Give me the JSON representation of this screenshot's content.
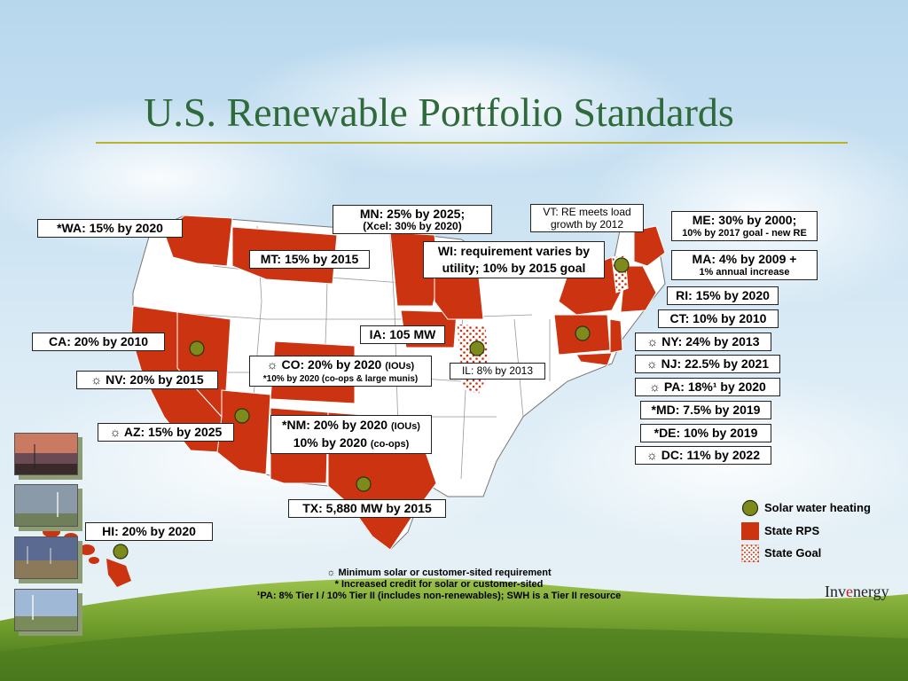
{
  "title": "U.S. Renewable Portfolio Standards",
  "colors": {
    "rps": "#cc3311",
    "goal_dots": "#cc3311",
    "solar": "#7d8a1c",
    "title": "#2f6a3a",
    "rule": "#b7b32d"
  },
  "callouts": {
    "wa": "*WA: 15% by 2020",
    "mt": "MT: 15% by 2015",
    "mn_line1": "MN: 25% by 2025;",
    "mn_line2": "(Xcel: 30% by 2020)",
    "vt_line1": "VT: RE meets load",
    "vt_line2": "growth by 2012",
    "wi_line1": "WI: requirement varies by",
    "wi_line2": "utility; 10% by 2015 goal",
    "me_line1": "ME: 30% by 2000;",
    "me_line2": "10% by 2017 goal - new RE",
    "ma_line1": "MA: 4% by 2009 +",
    "ma_line2": "1% annual increase",
    "ri": "RI: 15% by 2020",
    "ct": "CT: 10% by 2010",
    "ny": "☼ NY: 24% by 2013",
    "nj": "☼ NJ: 22.5% by 2021",
    "pa": "☼ PA: 18%¹ by 2020",
    "md": "*MD: 7.5% by 2019",
    "de": "*DE: 10% by 2019",
    "dc": "☼ DC: 11% by 2022",
    "ca": "CA: 20% by 2010",
    "ia": "IA: 105 MW",
    "co_line1": "☼ CO: 20% by 2020",
    "co_small": "(IOUs)",
    "co_line2": "*10% by 2020 (co-ops & large munis)",
    "il": "IL: 8% by 2013",
    "nv": "☼ NV: 20% by 2015",
    "nm_line1": "*NM: 20% by 2020",
    "nm_small1": "(IOUs)",
    "nm_line2": "10% by 2020",
    "nm_small2": "(co-ops)",
    "az": "☼ AZ: 15% by 2025",
    "tx": "TX: 5,880 MW by 2015",
    "hi": "HI: 20% by 2020"
  },
  "legend": {
    "solar": "Solar water heating",
    "rps": "State RPS",
    "goal": "State Goal"
  },
  "footnotes": {
    "line1": "☼ Minimum solar or customer-sited requirement",
    "line2": "* Increased credit for solar or customer-sited",
    "line3": "¹PA: 8% Tier I / 10% Tier II (includes non-renewables); SWH is a Tier II resource"
  },
  "logo": {
    "part1": "Inv",
    "part2": "e",
    "part3": "nergy"
  }
}
